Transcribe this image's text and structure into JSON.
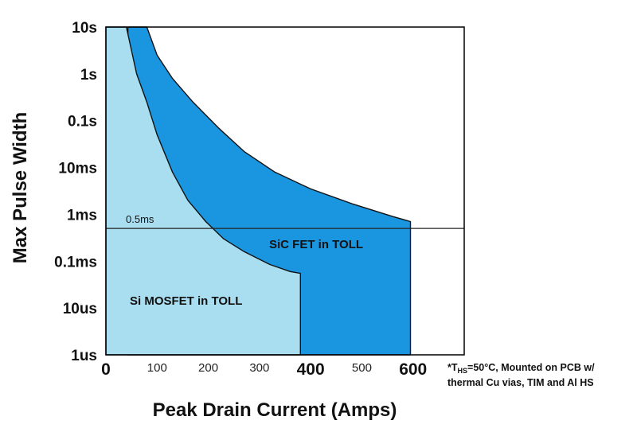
{
  "chart_data": {
    "type": "area",
    "xlabel": "Peak Drain Current (Amps)",
    "ylabel": "Max Pulse Width",
    "xlim": [
      0,
      700
    ],
    "x_scale": "linear",
    "y_scale": "log",
    "ylim_seconds": [
      1e-06,
      10
    ],
    "x_ticks": [
      {
        "value": 0,
        "label": "0",
        "emphasis": true
      },
      {
        "value": 100,
        "label": "100",
        "emphasis": false
      },
      {
        "value": 200,
        "label": "200",
        "emphasis": false
      },
      {
        "value": 300,
        "label": "300",
        "emphasis": false
      },
      {
        "value": 400,
        "label": "400",
        "emphasis": true
      },
      {
        "value": 500,
        "label": "500",
        "emphasis": false
      },
      {
        "value": 600,
        "label": "600",
        "emphasis": true
      }
    ],
    "y_ticks": [
      {
        "value": 10,
        "label": "10s"
      },
      {
        "value": 1,
        "label": "1s"
      },
      {
        "value": 0.1,
        "label": "0.1s"
      },
      {
        "value": 0.01,
        "label": "10ms"
      },
      {
        "value": 0.001,
        "label": "1ms"
      },
      {
        "value": 0.0001,
        "label": "0.1ms"
      },
      {
        "value": 1e-05,
        "label": "10us"
      },
      {
        "value": 1e-06,
        "label": "1us"
      }
    ],
    "grid": false,
    "legend": "none",
    "series": [
      {
        "name": "SiC FET in TOLL",
        "color": "#1a96e0",
        "x": [
          43,
          60,
          80,
          100,
          130,
          170,
          220,
          270,
          330,
          400,
          480,
          560,
          595,
          595
        ],
        "y": [
          10,
          10,
          10,
          2.5,
          0.8,
          0.25,
          0.07,
          0.022,
          0.008,
          0.0035,
          0.0017,
          0.0009,
          0.0007,
          1e-06
        ]
      },
      {
        "name": "Si MOSFET in TOLL",
        "color": "#a9ddf0",
        "x": [
          0,
          40,
          60,
          80,
          100,
          130,
          160,
          195,
          230,
          270,
          320,
          360,
          380,
          380
        ],
        "y": [
          10,
          10,
          1,
          0.25,
          0.05,
          0.008,
          0.002,
          0.0007,
          0.0003,
          0.00016,
          8.5e-05,
          6e-05,
          5.5e-05,
          1e-06
        ]
      }
    ],
    "reference_line": {
      "y": 0.0005,
      "label": "0.5ms",
      "color": "#222222"
    },
    "annotations": {
      "sic_label": "SiC FET in TOLL",
      "si_label": "Si MOSFET in TOLL",
      "ref_label": "0.5ms"
    },
    "footnote": {
      "prefix": "*T",
      "subscript": "HS",
      "line1_rest": "=50°C, Mounted on PCB w/",
      "line2": "thermal Cu vias, TIM and Al HS"
    }
  }
}
